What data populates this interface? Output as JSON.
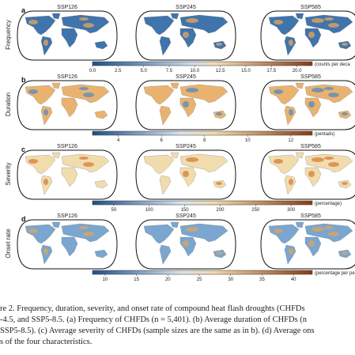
{
  "figure": {
    "columns": [
      "SSP126",
      "SSP245",
      "SSP585"
    ],
    "rows": [
      {
        "letter": "a",
        "name": "Frequency",
        "colorbar": {
          "lim": [
            0,
            21.5
          ],
          "unit": "(counts per deca",
          "ticks": [
            {
              "value": 0,
              "label": "0.0"
            },
            2.5,
            {
              "value": 5,
              "label": "5.0"
            },
            7.5,
            {
              "value": 10,
              "label": "10.0"
            },
            12.5,
            {
              "value": 15,
              "label": "15.0"
            },
            17.5,
            {
              "value": 20,
              "label": "20.0"
            }
          ]
        }
      },
      {
        "letter": "b",
        "name": "Duration",
        "colorbar": {
          "lim": [
            2.8,
            13
          ],
          "unit": "(pentads)",
          "ticks": [
            4,
            6,
            8,
            10,
            12
          ]
        }
      },
      {
        "letter": "c",
        "name": "Severity",
        "colorbar": {
          "lim": [
            20,
            330
          ],
          "unit": "(percentage)",
          "ticks": [
            50,
            100,
            150,
            200,
            250,
            300
          ]
        }
      },
      {
        "letter": "d",
        "name": "Onset rate",
        "colorbar": {
          "lim": [
            8,
            43
          ],
          "unit": "(percentage per pentad",
          "ticks": [
            10,
            15,
            20,
            25,
            30,
            35,
            40
          ]
        }
      }
    ]
  },
  "caption": {
    "lines": [
      "re 2.  Frequency, duration, severity, and onset rate of compound heat flash droughts (CHFDs",
      "-4.5, and SSP5-8.5. (a) Frequency of CHFDs (n = 5,401). (b) Average duration of CHFDs (n",
      "SSP5-8.5). (c) Average severity of CHFDs (sample sizes are the same as in b). (d) Average ons",
      "s of the four characteristics."
    ]
  }
}
